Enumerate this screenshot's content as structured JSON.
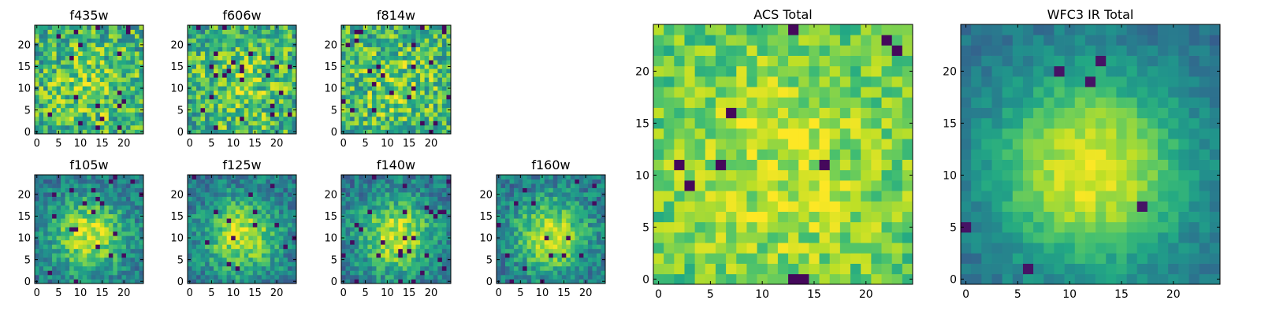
{
  "chart_data": [
    {
      "type": "heatmap",
      "title": "f435w",
      "xlim": [
        0,
        25
      ],
      "ylim": [
        0,
        25
      ],
      "xticks": [
        "0",
        "5",
        "10",
        "15",
        "20"
      ],
      "yticks": [
        "0",
        "5",
        "10",
        "15",
        "20"
      ],
      "grid_size": 25,
      "colormap": "viridis",
      "field": "noise",
      "seed": 11
    },
    {
      "type": "heatmap",
      "title": "f606w",
      "xlim": [
        0,
        25
      ],
      "ylim": [
        0,
        25
      ],
      "xticks": [
        "0",
        "5",
        "10",
        "15",
        "20"
      ],
      "yticks": [
        "0",
        "5",
        "10",
        "15",
        "20"
      ],
      "grid_size": 25,
      "colormap": "viridis",
      "field": "noise",
      "seed": 23
    },
    {
      "type": "heatmap",
      "title": "f814w",
      "xlim": [
        0,
        25
      ],
      "ylim": [
        0,
        25
      ],
      "xticks": [
        "0",
        "5",
        "10",
        "15",
        "20"
      ],
      "yticks": [
        "0",
        "5",
        "10",
        "15",
        "20"
      ],
      "grid_size": 25,
      "colormap": "viridis",
      "field": "noise",
      "seed": 37
    },
    {
      "type": "heatmap",
      "title": "f105w",
      "xlim": [
        0,
        25
      ],
      "ylim": [
        0,
        25
      ],
      "xticks": [
        "0",
        "5",
        "10",
        "15",
        "20"
      ],
      "yticks": [
        "0",
        "5",
        "10",
        "15",
        "20"
      ],
      "grid_size": 25,
      "colormap": "viridis",
      "field": "blob",
      "seed": 41
    },
    {
      "type": "heatmap",
      "title": "f125w",
      "xlim": [
        0,
        25
      ],
      "ylim": [
        0,
        25
      ],
      "xticks": [
        "0",
        "5",
        "10",
        "15",
        "20"
      ],
      "yticks": [
        "0",
        "5",
        "10",
        "15",
        "20"
      ],
      "grid_size": 25,
      "colormap": "viridis",
      "field": "blob",
      "seed": 53
    },
    {
      "type": "heatmap",
      "title": "f140w",
      "xlim": [
        0,
        25
      ],
      "ylim": [
        0,
        25
      ],
      "xticks": [
        "0",
        "5",
        "10",
        "15",
        "20"
      ],
      "yticks": [
        "0",
        "5",
        "10",
        "15",
        "20"
      ],
      "grid_size": 25,
      "colormap": "viridis",
      "field": "blob",
      "seed": 67
    },
    {
      "type": "heatmap",
      "title": "f160w",
      "xlim": [
        0,
        25
      ],
      "ylim": [
        0,
        25
      ],
      "xticks": [
        "0",
        "5",
        "10",
        "15",
        "20"
      ],
      "yticks": [
        "0",
        "5",
        "10",
        "15",
        "20"
      ],
      "grid_size": 25,
      "colormap": "viridis",
      "field": "blob",
      "seed": 79
    },
    {
      "type": "heatmap",
      "title": "ACS Total",
      "xlim": [
        0,
        25
      ],
      "ylim": [
        0,
        25
      ],
      "xticks": [
        "0",
        "5",
        "10",
        "15",
        "20"
      ],
      "yticks": [
        "0",
        "5",
        "10",
        "15",
        "20"
      ],
      "grid_size": 25,
      "colormap": "viridis",
      "field": "acs",
      "seed": 97
    },
    {
      "type": "heatmap",
      "title": "WFC3 IR Total",
      "xlim": [
        0,
        25
      ],
      "ylim": [
        0,
        25
      ],
      "xticks": [
        "0",
        "5",
        "10",
        "15",
        "20"
      ],
      "yticks": [
        "0",
        "5",
        "10",
        "15",
        "20"
      ],
      "grid_size": 25,
      "colormap": "viridis",
      "field": "ir",
      "seed": 113
    }
  ]
}
